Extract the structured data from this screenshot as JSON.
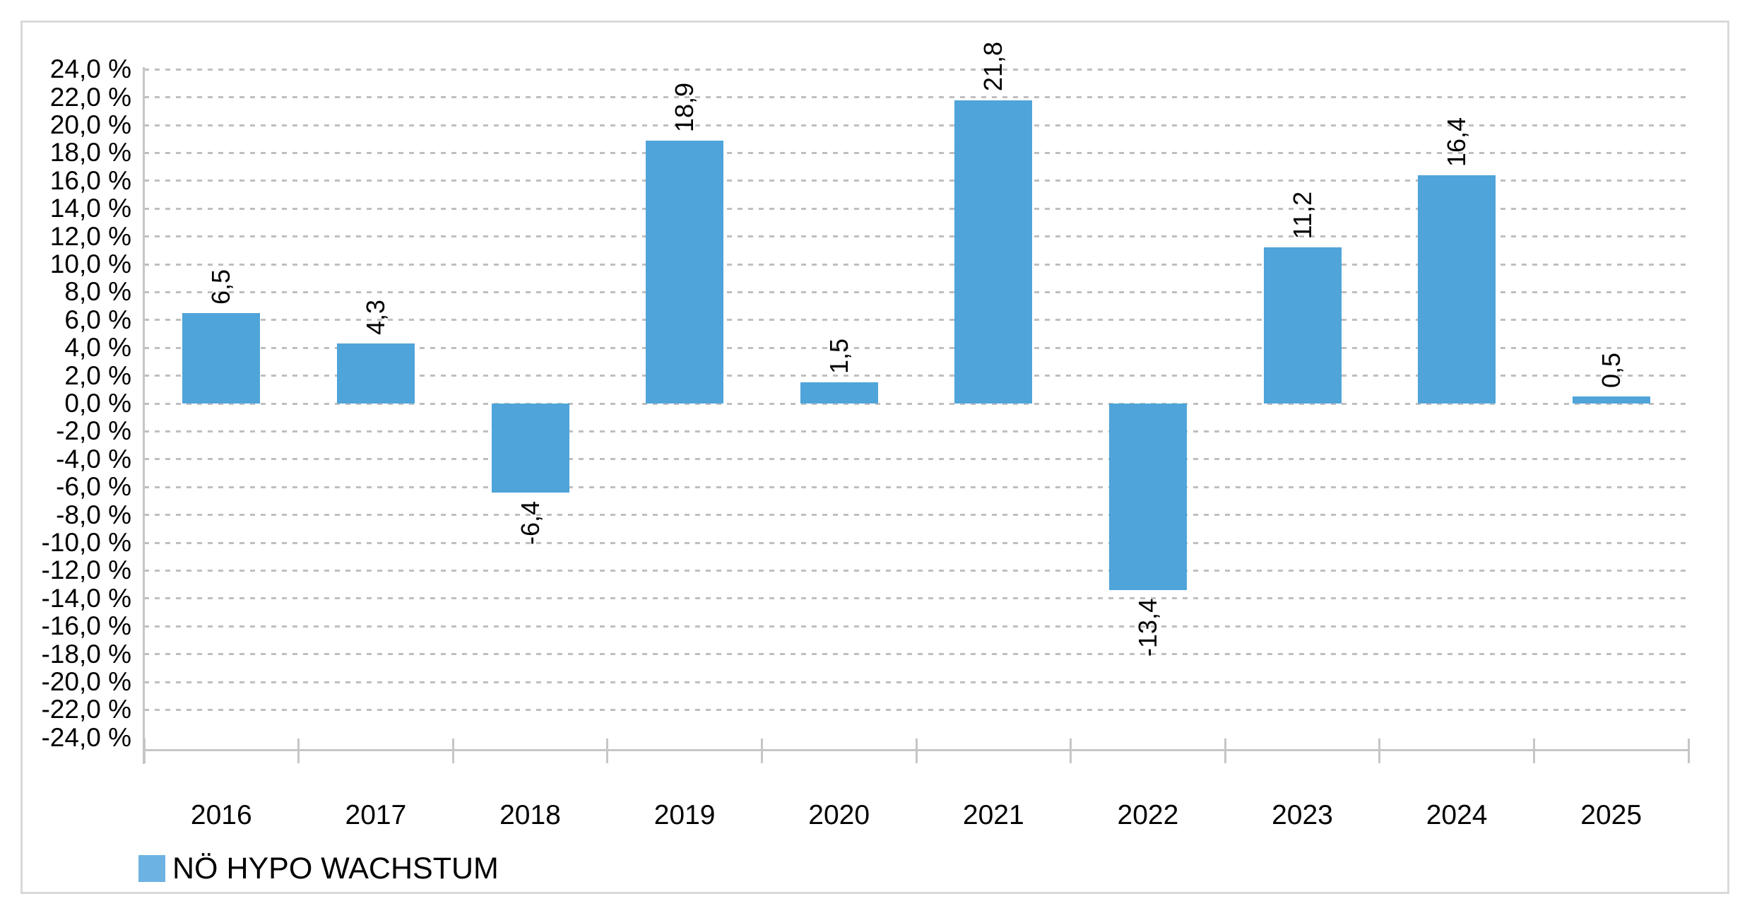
{
  "chart_data": {
    "type": "bar",
    "title": "",
    "categories": [
      "2016",
      "2017",
      "2018",
      "2019",
      "2020",
      "2021",
      "2022",
      "2023",
      "2024",
      "2025"
    ],
    "series": [
      {
        "name": "NÖ HYPO WACHSTUM",
        "values": [
          6.5,
          4.3,
          -6.4,
          18.9,
          1.5,
          21.8,
          -13.4,
          11.2,
          16.4,
          0.5
        ],
        "value_labels": [
          "6,5",
          "4,3",
          "-6,4",
          "18,9",
          "1,5",
          "21,8",
          "-13,4",
          "11,2",
          "16,4",
          "0,5"
        ]
      }
    ],
    "y_axis": {
      "min": -24,
      "max": 24,
      "step": 2,
      "unit": "%",
      "tick_labels": [
        "24,0 %",
        "22,0 %",
        "20,0 %",
        "18,0 %",
        "16,0 %",
        "14,0 %",
        "12,0 %",
        "10,0 %",
        "8,0 %",
        "6,0 %",
        "4,0 %",
        "2,0 %",
        "0,0 %",
        "-2,0 %",
        "-4,0 %",
        "-6,0 %",
        "-8,0 %",
        "-10,0 %",
        "-12,0 %",
        "-14,0 %",
        "-16,0 %",
        "-18,0 %",
        "-20,0 %",
        "-22,0 %",
        "-24,0 %"
      ]
    },
    "legend": {
      "position": "bottom-left",
      "entries": [
        "NÖ HYPO WACHSTUM"
      ]
    },
    "grid": "dashed-horizontal",
    "gridlines_drawn_from": 24,
    "gridlines_drawn_to": -22,
    "colors": {
      "bar": "#4fa4d9",
      "legend_swatch": "#6cb2e3",
      "grid": "#bfbfbf",
      "axis": "#c6c6c6",
      "text": "#000000",
      "frame_border": "#d9d9d9",
      "background": "#ffffff"
    }
  }
}
